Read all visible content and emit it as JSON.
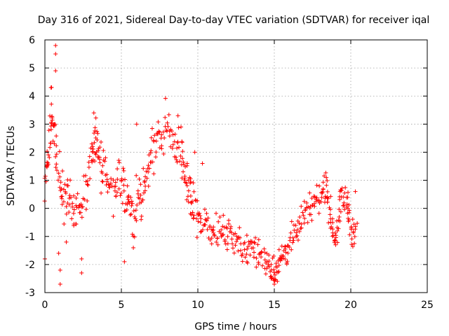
{
  "chart_data": {
    "type": "scatter",
    "title": "Day 316 of 2021, Sidereal Day-to-day VTEC variation (SDTVAR) for receiver iqal",
    "xlabel": "GPS time / hours",
    "ylabel": "SDTVAR / TECUs",
    "xlim": [
      0,
      25
    ],
    "ylim": [
      -3,
      6
    ],
    "xticks": [
      "0",
      "5",
      "10",
      "15",
      "20",
      "25"
    ],
    "yticks": [
      "-3",
      "-2",
      "-1",
      "0",
      "1",
      "2",
      "3",
      "4",
      "5",
      "6"
    ],
    "grid": true,
    "marker": "+",
    "color": "#ff0000",
    "trend": [
      [
        0.0,
        1.0
      ],
      [
        0.3,
        2.5
      ],
      [
        0.5,
        3.6
      ],
      [
        0.8,
        1.5
      ],
      [
        1.2,
        0.6
      ],
      [
        1.6,
        0.2
      ],
      [
        2.0,
        -0.4
      ],
      [
        2.5,
        0.3
      ],
      [
        3.0,
        1.6
      ],
      [
        3.3,
        2.6
      ],
      [
        3.6,
        1.9
      ],
      [
        4.0,
        1.0
      ],
      [
        4.5,
        0.4
      ],
      [
        5.0,
        0.9
      ],
      [
        5.4,
        0.2
      ],
      [
        5.8,
        -0.5
      ],
      [
        6.2,
        0.4
      ],
      [
        6.6,
        1.2
      ],
      [
        7.0,
        2.0
      ],
      [
        7.5,
        2.6
      ],
      [
        8.0,
        2.8
      ],
      [
        8.5,
        2.4
      ],
      [
        9.0,
        1.8
      ],
      [
        9.3,
        0.9
      ],
      [
        9.6,
        0.0
      ],
      [
        10.0,
        -0.3
      ],
      [
        10.5,
        -0.5
      ],
      [
        11.0,
        -0.7
      ],
      [
        11.5,
        -0.8
      ],
      [
        12.0,
        -0.9
      ],
      [
        12.5,
        -1.1
      ],
      [
        13.0,
        -1.4
      ],
      [
        13.5,
        -1.5
      ],
      [
        14.0,
        -1.6
      ],
      [
        14.5,
        -1.8
      ],
      [
        14.9,
        -2.2
      ],
      [
        15.2,
        -2.1
      ],
      [
        15.6,
        -1.6
      ],
      [
        16.0,
        -1.3
      ],
      [
        16.5,
        -0.8
      ],
      [
        17.0,
        -0.3
      ],
      [
        17.5,
        0.1
      ],
      [
        18.0,
        0.5
      ],
      [
        18.4,
        0.9
      ],
      [
        18.7,
        -0.5
      ],
      [
        19.0,
        -1.0
      ],
      [
        19.3,
        0.2
      ],
      [
        19.7,
        0.4
      ],
      [
        20.0,
        -0.7
      ],
      [
        20.4,
        -0.8
      ]
    ],
    "spikes": [
      [
        0.0,
        -1.8
      ],
      [
        0.4,
        4.3
      ],
      [
        0.7,
        5.8
      ],
      [
        0.7,
        5.5
      ],
      [
        0.7,
        4.9
      ],
      [
        0.9,
        -1.6
      ],
      [
        1.0,
        -2.7
      ],
      [
        1.0,
        -2.2
      ],
      [
        1.4,
        -1.2
      ],
      [
        2.4,
        -2.3
      ],
      [
        2.4,
        -1.8
      ],
      [
        3.2,
        3.4
      ],
      [
        5.2,
        -1.9
      ],
      [
        6.0,
        3.0
      ],
      [
        8.7,
        3.3
      ],
      [
        8.9,
        2.9
      ],
      [
        9.8,
        2.0
      ],
      [
        10.3,
        1.6
      ],
      [
        14.8,
        -2.5
      ],
      [
        15.0,
        -2.7
      ],
      [
        15.2,
        -2.6
      ],
      [
        18.4,
        1.1
      ],
      [
        19.3,
        0.6
      ],
      [
        20.3,
        0.6
      ]
    ]
  }
}
